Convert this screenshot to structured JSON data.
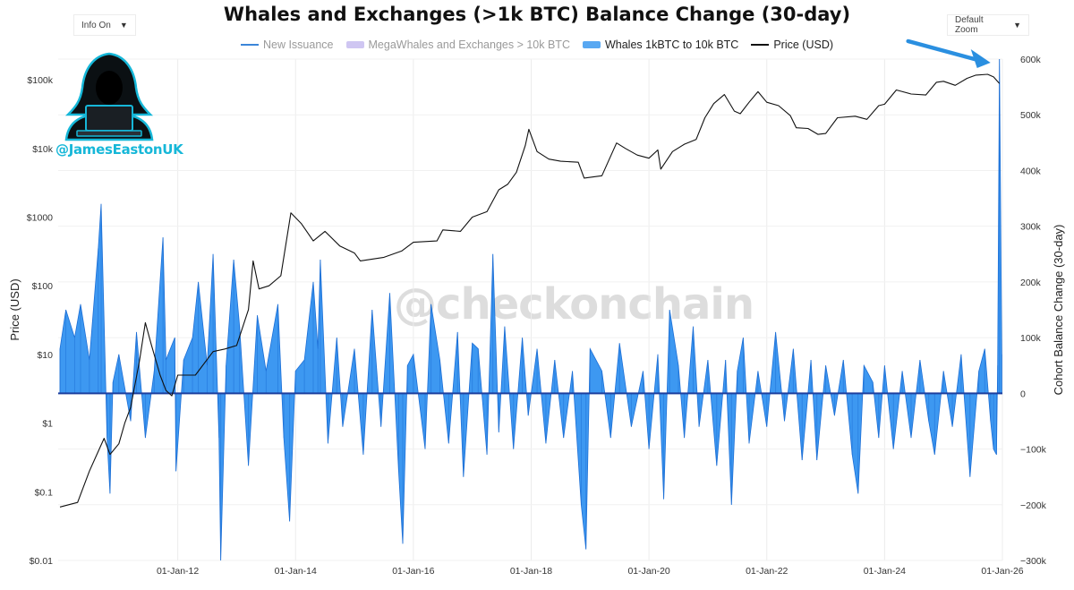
{
  "header": {
    "title": "Whales and Exchanges (>1k BTC) Balance Change (30-day)",
    "info_dropdown": "Info On",
    "zoom_dropdown": "Default Zoom"
  },
  "branding": {
    "handle": "@JamesEastonUK",
    "watermark": "@checkonchain"
  },
  "colors": {
    "bars": "#2d8ff0",
    "bars_dark": "#1d6fd6",
    "price": "#111111",
    "legend_new_issuance": "#3b86d9",
    "legend_megawhales": "#cfc6f2",
    "legend_whales": "#58a8f2",
    "arrow": "#2a8fe0",
    "zero_line": "#1d3f9e",
    "logo_accent": "#16b7d8"
  },
  "chart_data": {
    "type": "area",
    "title": "Whales and Exchanges (>1k BTC) Balance Change (30-day)",
    "legend": [
      {
        "name": "New Issuance",
        "kind": "line",
        "active": false
      },
      {
        "name": "MegaWhales and Exchanges > 10k BTC",
        "kind": "box",
        "active": false
      },
      {
        "name": "Whales 1kBTC to 10k BTC",
        "kind": "box",
        "active": true
      },
      {
        "name": "Price (USD)",
        "kind": "line",
        "active": true
      }
    ],
    "x_range": [
      2009.97,
      2026.0
    ],
    "x_ticks": [
      {
        "x": 2012,
        "label": "01-Jan-12"
      },
      {
        "x": 2014,
        "label": "01-Jan-14"
      },
      {
        "x": 2016,
        "label": "01-Jan-16"
      },
      {
        "x": 2018,
        "label": "01-Jan-18"
      },
      {
        "x": 2020,
        "label": "01-Jan-20"
      },
      {
        "x": 2022,
        "label": "01-Jan-22"
      },
      {
        "x": 2024,
        "label": "01-Jan-24"
      },
      {
        "x": 2026,
        "label": "01-Jan-26"
      }
    ],
    "y_left": {
      "label": "Price (USD)",
      "scale": "log",
      "range": [
        0.01,
        200000
      ],
      "ticks": [
        {
          "v": 0.01,
          "label": "$0.01"
        },
        {
          "v": 0.1,
          "label": "$0.1"
        },
        {
          "v": 1,
          "label": "$1"
        },
        {
          "v": 10,
          "label": "$10"
        },
        {
          "v": 100,
          "label": "$100"
        },
        {
          "v": 1000,
          "label": "$1000"
        },
        {
          "v": 10000,
          "label": "$10k"
        },
        {
          "v": 100000,
          "label": "$100k"
        }
      ]
    },
    "y_right": {
      "label": "Cohort Balance Change (30-day)",
      "scale": "linear",
      "range": [
        -300000,
        600000
      ],
      "ticks": [
        {
          "v": -300000,
          "label": "−300k"
        },
        {
          "v": -200000,
          "label": "−200k"
        },
        {
          "v": -100000,
          "label": "−100k"
        },
        {
          "v": 0,
          "label": "0"
        },
        {
          "v": 100000,
          "label": "100k"
        },
        {
          "v": 200000,
          "label": "200k"
        },
        {
          "v": 300000,
          "label": "300k"
        },
        {
          "v": 400000,
          "label": "400k"
        },
        {
          "v": 500000,
          "label": "500k"
        },
        {
          "v": 600000,
          "label": "600k"
        }
      ]
    },
    "price_series": [
      [
        2010.0,
        0.06
      ],
      [
        2010.3,
        0.07
      ],
      [
        2010.5,
        0.2
      ],
      [
        2010.75,
        0.6
      ],
      [
        2010.85,
        0.35
      ],
      [
        2011.0,
        0.5
      ],
      [
        2011.1,
        1.0
      ],
      [
        2011.2,
        1.7
      ],
      [
        2011.35,
        8.0
      ],
      [
        2011.45,
        29.0
      ],
      [
        2011.55,
        14.0
      ],
      [
        2011.7,
        5.0
      ],
      [
        2011.8,
        3.0
      ],
      [
        2011.9,
        2.5
      ],
      [
        2012.0,
        5.0
      ],
      [
        2012.3,
        5.0
      ],
      [
        2012.6,
        11.0
      ],
      [
        2012.8,
        12.0
      ],
      [
        2013.0,
        13.5
      ],
      [
        2013.2,
        45.0
      ],
      [
        2013.28,
        230.0
      ],
      [
        2013.38,
        90.0
      ],
      [
        2013.55,
        100.0
      ],
      [
        2013.75,
        140.0
      ],
      [
        2013.92,
        1150.0
      ],
      [
        2014.1,
        800.0
      ],
      [
        2014.3,
        450.0
      ],
      [
        2014.5,
        620.0
      ],
      [
        2014.75,
        380.0
      ],
      [
        2015.0,
        300.0
      ],
      [
        2015.1,
        230.0
      ],
      [
        2015.5,
        260.0
      ],
      [
        2015.8,
        320.0
      ],
      [
        2016.0,
        430.0
      ],
      [
        2016.4,
        450.0
      ],
      [
        2016.5,
        650.0
      ],
      [
        2016.8,
        620.0
      ],
      [
        2017.0,
        1000.0
      ],
      [
        2017.25,
        1200.0
      ],
      [
        2017.45,
        2500.0
      ],
      [
        2017.6,
        3000.0
      ],
      [
        2017.75,
        4500.0
      ],
      [
        2017.9,
        11000.0
      ],
      [
        2017.96,
        19000.0
      ],
      [
        2018.1,
        9000.0
      ],
      [
        2018.3,
        7000.0
      ],
      [
        2018.5,
        6500.0
      ],
      [
        2018.8,
        6300.0
      ],
      [
        2018.9,
        3700.0
      ],
      [
        2019.2,
        4000.0
      ],
      [
        2019.45,
        12000.0
      ],
      [
        2019.6,
        10000.0
      ],
      [
        2019.8,
        8000.0
      ],
      [
        2020.0,
        7200.0
      ],
      [
        2020.15,
        9500.0
      ],
      [
        2020.2,
        5000.0
      ],
      [
        2020.4,
        9000.0
      ],
      [
        2020.6,
        11500.0
      ],
      [
        2020.8,
        13500.0
      ],
      [
        2020.95,
        28000.0
      ],
      [
        2021.1,
        45000.0
      ],
      [
        2021.28,
        61000.0
      ],
      [
        2021.45,
        35000.0
      ],
      [
        2021.55,
        32000.0
      ],
      [
        2021.7,
        47000.0
      ],
      [
        2021.85,
        67000.0
      ],
      [
        2022.0,
        47000.0
      ],
      [
        2022.2,
        42000.0
      ],
      [
        2022.4,
        30000.0
      ],
      [
        2022.5,
        20000.0
      ],
      [
        2022.7,
        19500.0
      ],
      [
        2022.87,
        16000.0
      ],
      [
        2023.0,
        16500.0
      ],
      [
        2023.2,
        28000.0
      ],
      [
        2023.5,
        29500.0
      ],
      [
        2023.7,
        26500.0
      ],
      [
        2023.9,
        42000.0
      ],
      [
        2024.0,
        44000.0
      ],
      [
        2024.2,
        71000.0
      ],
      [
        2024.45,
        62000.0
      ],
      [
        2024.7,
        60000.0
      ],
      [
        2024.88,
        92000.0
      ],
      [
        2025.0,
        95000.0
      ],
      [
        2025.2,
        83000.0
      ],
      [
        2025.4,
        105000.0
      ],
      [
        2025.55,
        117000.0
      ],
      [
        2025.75,
        120000.0
      ],
      [
        2025.85,
        110000.0
      ],
      [
        2025.95,
        88000.0
      ]
    ],
    "balance_series": [
      [
        2010.0,
        80000
      ],
      [
        2010.1,
        150000
      ],
      [
        2010.25,
        100000
      ],
      [
        2010.35,
        160000
      ],
      [
        2010.5,
        60000
      ],
      [
        2010.65,
        260000
      ],
      [
        2010.7,
        340000
      ],
      [
        2010.8,
        -80000
      ],
      [
        2010.85,
        -180000
      ],
      [
        2010.9,
        20000
      ],
      [
        2011.0,
        70000
      ],
      [
        2011.2,
        -50000
      ],
      [
        2011.3,
        110000
      ],
      [
        2011.45,
        -80000
      ],
      [
        2011.6,
        40000
      ],
      [
        2011.75,
        280000
      ],
      [
        2011.8,
        60000
      ],
      [
        2011.95,
        100000
      ],
      [
        2011.97,
        -140000
      ],
      [
        2012.1,
        60000
      ],
      [
        2012.25,
        100000
      ],
      [
        2012.35,
        200000
      ],
      [
        2012.5,
        50000
      ],
      [
        2012.6,
        250000
      ],
      [
        2012.7,
        -80000
      ],
      [
        2012.73,
        -300000
      ],
      [
        2012.82,
        50000
      ],
      [
        2012.95,
        240000
      ],
      [
        2013.05,
        120000
      ],
      [
        2013.2,
        -130000
      ],
      [
        2013.35,
        140000
      ],
      [
        2013.5,
        40000
      ],
      [
        2013.7,
        160000
      ],
      [
        2013.8,
        -80000
      ],
      [
        2013.9,
        -230000
      ],
      [
        2014.0,
        40000
      ],
      [
        2014.15,
        60000
      ],
      [
        2014.3,
        200000
      ],
      [
        2014.38,
        80000
      ],
      [
        2014.42,
        240000
      ],
      [
        2014.55,
        -90000
      ],
      [
        2014.7,
        100000
      ],
      [
        2014.8,
        -60000
      ],
      [
        2015.0,
        80000
      ],
      [
        2015.15,
        -110000
      ],
      [
        2015.3,
        150000
      ],
      [
        2015.45,
        -60000
      ],
      [
        2015.6,
        180000
      ],
      [
        2015.75,
        -140000
      ],
      [
        2015.82,
        -270000
      ],
      [
        2015.9,
        50000
      ],
      [
        2016.0,
        70000
      ],
      [
        2016.2,
        -100000
      ],
      [
        2016.3,
        160000
      ],
      [
        2016.45,
        60000
      ],
      [
        2016.6,
        -90000
      ],
      [
        2016.75,
        110000
      ],
      [
        2016.85,
        -150000
      ],
      [
        2017.0,
        90000
      ],
      [
        2017.1,
        80000
      ],
      [
        2017.25,
        -110000
      ],
      [
        2017.35,
        250000
      ],
      [
        2017.45,
        -70000
      ],
      [
        2017.55,
        120000
      ],
      [
        2017.7,
        -100000
      ],
      [
        2017.85,
        100000
      ],
      [
        2017.95,
        -40000
      ],
      [
        2018.1,
        80000
      ],
      [
        2018.25,
        -90000
      ],
      [
        2018.4,
        60000
      ],
      [
        2018.55,
        -80000
      ],
      [
        2018.7,
        40000
      ],
      [
        2018.85,
        -200000
      ],
      [
        2018.93,
        -280000
      ],
      [
        2019.0,
        80000
      ],
      [
        2019.2,
        40000
      ],
      [
        2019.35,
        -80000
      ],
      [
        2019.5,
        90000
      ],
      [
        2019.7,
        -60000
      ],
      [
        2019.9,
        40000
      ],
      [
        2020.0,
        -100000
      ],
      [
        2020.15,
        70000
      ],
      [
        2020.25,
        -190000
      ],
      [
        2020.35,
        150000
      ],
      [
        2020.5,
        50000
      ],
      [
        2020.6,
        -80000
      ],
      [
        2020.75,
        120000
      ],
      [
        2020.85,
        -60000
      ],
      [
        2021.0,
        60000
      ],
      [
        2021.15,
        -130000
      ],
      [
        2021.3,
        60000
      ],
      [
        2021.4,
        -200000
      ],
      [
        2021.5,
        40000
      ],
      [
        2021.6,
        100000
      ],
      [
        2021.7,
        -90000
      ],
      [
        2021.85,
        40000
      ],
      [
        2022.0,
        -60000
      ],
      [
        2022.15,
        110000
      ],
      [
        2022.3,
        -50000
      ],
      [
        2022.45,
        80000
      ],
      [
        2022.6,
        -120000
      ],
      [
        2022.75,
        60000
      ],
      [
        2022.85,
        -120000
      ],
      [
        2023.0,
        50000
      ],
      [
        2023.15,
        -40000
      ],
      [
        2023.3,
        60000
      ],
      [
        2023.45,
        -110000
      ],
      [
        2023.55,
        -180000
      ],
      [
        2023.65,
        50000
      ],
      [
        2023.8,
        20000
      ],
      [
        2023.9,
        -80000
      ],
      [
        2024.0,
        50000
      ],
      [
        2024.15,
        -100000
      ],
      [
        2024.3,
        40000
      ],
      [
        2024.45,
        -80000
      ],
      [
        2024.6,
        60000
      ],
      [
        2024.75,
        -50000
      ],
      [
        2024.85,
        -110000
      ],
      [
        2025.0,
        40000
      ],
      [
        2025.15,
        -60000
      ],
      [
        2025.3,
        70000
      ],
      [
        2025.45,
        -150000
      ],
      [
        2025.6,
        40000
      ],
      [
        2025.7,
        80000
      ],
      [
        2025.8,
        -50000
      ],
      [
        2025.85,
        -100000
      ],
      [
        2025.9,
        -110000
      ],
      [
        2025.92,
        50000
      ],
      [
        2025.95,
        600000
      ],
      [
        2025.99,
        70000
      ]
    ]
  }
}
